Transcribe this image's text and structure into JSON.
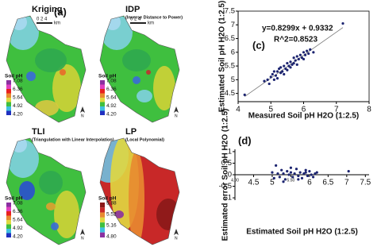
{
  "panel_label": "(a)",
  "maps": [
    {
      "title": "Kriging",
      "scale": "0 2 4",
      "scale_unit": "km",
      "legend_title": "Soil pH",
      "legend": [
        "7.08",
        "6.36",
        "5.64",
        "4.92",
        "4.20"
      ],
      "north": "N"
    },
    {
      "title": "IDP",
      "subtitle": "(Inverse Distance to Power)",
      "scale": "0 2 4",
      "scale_unit": "km",
      "legend_title": "Soil pH",
      "legend": [
        "7.08",
        "6.36",
        "5.64",
        "4.92",
        "4.20"
      ],
      "north": "N"
    },
    {
      "title": "TLI",
      "subtitle": "(Triangulation with Linear Interpolation)",
      "legend_title": "Soil pH",
      "legend": [
        "7.08",
        "6.36",
        "5.64",
        "4.92",
        "4.20"
      ],
      "north": "N"
    },
    {
      "title": "LP",
      "subtitle": "(Local Polynomial)",
      "legend_title": "Soil pH",
      "legend": [
        "5.88",
        "5.52",
        "5.16",
        "4.80"
      ],
      "north": "N"
    }
  ],
  "chart_data": [
    {
      "type": "scatter",
      "panel_label": "(c)",
      "x_label": "Measured Soil pH H2O (1:2.5)",
      "y_label": "Estimated Soil pH H2O (1:2.5)",
      "annotations": [
        "y=0.8299x + 0.9332",
        "R^2=0.8523"
      ],
      "color": "#1c2470",
      "trendline": true,
      "xlim": [
        4,
        8
      ],
      "xticks": [
        4,
        5,
        6,
        7,
        8
      ],
      "ylim": [
        4.2,
        7.5
      ],
      "yticks": [
        4.5,
        5,
        5.5,
        6,
        6.5,
        7,
        7.5
      ],
      "x": [
        4.2,
        4.8,
        4.9,
        4.95,
        5.0,
        5.05,
        5.1,
        5.1,
        5.15,
        5.2,
        5.2,
        5.25,
        5.3,
        5.3,
        5.35,
        5.4,
        5.4,
        5.45,
        5.5,
        5.5,
        5.55,
        5.6,
        5.6,
        5.65,
        5.7,
        5.7,
        5.75,
        5.8,
        5.8,
        5.85,
        5.9,
        5.95,
        6.0,
        6.0,
        6.05,
        6.1,
        6.15,
        6.2,
        6.3,
        7.2
      ],
      "values": [
        4.45,
        4.95,
        5.0,
        4.85,
        5.1,
        5.2,
        5.0,
        5.3,
        5.15,
        5.3,
        5.05,
        5.4,
        5.25,
        5.45,
        5.3,
        5.5,
        5.2,
        5.4,
        5.6,
        5.35,
        5.5,
        5.65,
        5.45,
        5.55,
        5.8,
        5.6,
        5.7,
        5.85,
        5.55,
        5.75,
        5.9,
        5.8,
        6.0,
        5.75,
        5.9,
        6.05,
        5.95,
        6.1,
        6.0,
        7.05
      ]
    },
    {
      "type": "scatter",
      "panel_label": "(d)",
      "x_label": "Estimated Soil pH H2O (1:2.5)",
      "y_label": "Estimated error Soil pH H2O (1:2.5)",
      "color": "#1c2470",
      "zero_line": true,
      "xlim": [
        4,
        7.6
      ],
      "xticks": [
        {
          "value": 4,
          "label": "4.00"
        },
        4.5,
        5,
        {
          "value": 5.5,
          "label": "5.50"
        },
        6,
        6.5,
        7,
        7.5
      ],
      "ylim": [
        -1.1,
        1.1
      ],
      "yticks": [
        -1,
        -0.5,
        0,
        0.5,
        1
      ],
      "x": [
        5.0,
        5.05,
        5.1,
        5.15,
        5.2,
        5.25,
        5.3,
        5.35,
        5.4,
        5.45,
        5.5,
        5.55,
        5.6,
        5.65,
        5.7,
        5.75,
        5.8,
        5.85,
        5.9,
        5.95,
        6.0,
        6.05,
        6.1,
        6.15,
        6.2,
        5.3,
        5.5,
        5.7,
        5.9,
        7.05
      ],
      "values": [
        0.1,
        -0.15,
        0.4,
        0.05,
        -0.1,
        0.2,
        0.05,
        -0.2,
        0.15,
        0.0,
        0.1,
        -0.1,
        0.05,
        0.25,
        -0.05,
        0.1,
        -0.15,
        0.05,
        0.1,
        -0.05,
        0.15,
        0.0,
        -0.1,
        0.05,
        0.1,
        -0.3,
        0.3,
        -0.2,
        0.2,
        0.15
      ]
    }
  ]
}
